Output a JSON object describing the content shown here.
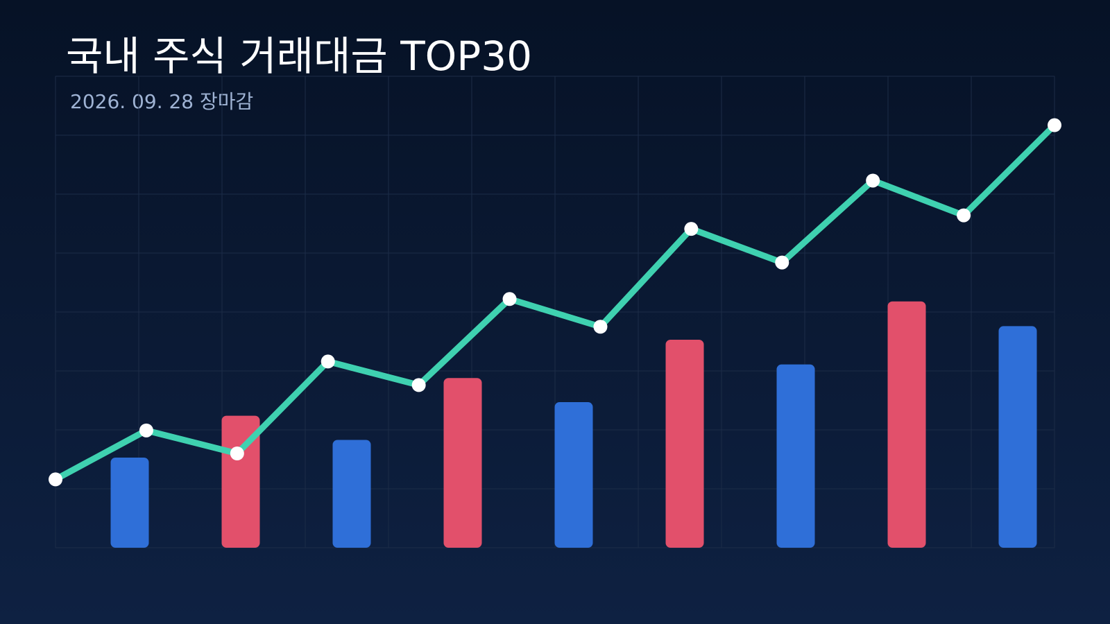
{
  "header": {
    "title": "국내 주식 거래대금 TOP30",
    "subtitle": "2026. 09. 28 장마감"
  },
  "colors": {
    "background_top": "#061226",
    "background_bottom": "#0e2142",
    "grid": "#1c2c47",
    "bar_blue": "#2f6fd8",
    "bar_red": "#e2506b",
    "line": "#3fd1b0",
    "marker": "#ffffff"
  },
  "chart_data": {
    "type": "bar",
    "title": "국내 주식 거래대금 TOP30",
    "subtitle": "2026. 09. 28 장마감",
    "xlabel": "",
    "ylabel": "",
    "grid": true,
    "ylim": [
      0,
      8
    ],
    "bars": {
      "values": [
        1.53,
        2.24,
        1.83,
        2.88,
        2.47,
        3.53,
        3.11,
        4.18,
        3.76
      ],
      "colors": [
        "blue",
        "red",
        "blue",
        "red",
        "blue",
        "red",
        "blue",
        "red",
        "blue"
      ]
    },
    "line": {
      "values": [
        1.16,
        1.99,
        1.6,
        3.16,
        2.76,
        4.22,
        3.75,
        5.41,
        4.84,
        6.23,
        5.64,
        7.17
      ]
    }
  }
}
